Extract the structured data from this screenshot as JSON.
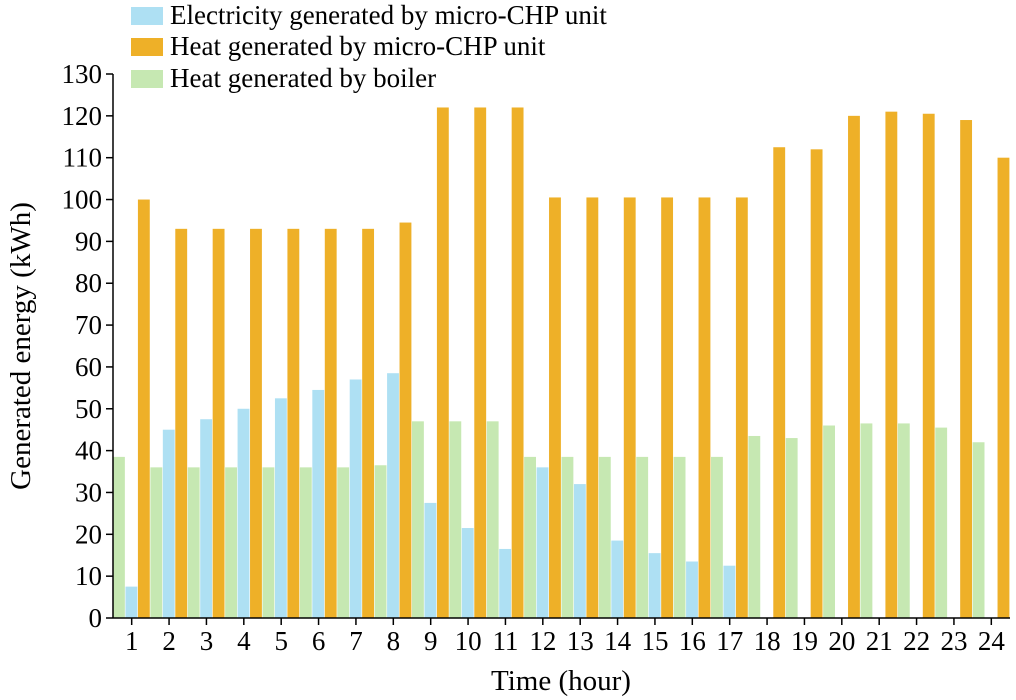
{
  "chart_data": {
    "type": "bar",
    "title": "",
    "xlabel": "Time (hour)",
    "ylabel": "Generated energy (kWh)",
    "ylim": [
      0,
      130
    ],
    "yticks": [
      0,
      10,
      20,
      30,
      40,
      50,
      60,
      70,
      80,
      90,
      100,
      110,
      120,
      130
    ],
    "grid": false,
    "legend_position": "top-left",
    "categories": [
      "1",
      "2",
      "3",
      "4",
      "5",
      "6",
      "7",
      "8",
      "9",
      "10",
      "11",
      "12",
      "13",
      "14",
      "15",
      "16",
      "17",
      "18",
      "19",
      "20",
      "21",
      "22",
      "23",
      "24"
    ],
    "series": [
      {
        "name": "Heat generated by boiler",
        "color": "#c6e8b2",
        "values": [
          38.5,
          36,
          36,
          36,
          36,
          36,
          36,
          36.5,
          47,
          47,
          47,
          38.5,
          38.5,
          38.5,
          38.5,
          38.5,
          38.5,
          43.5,
          43,
          46,
          46.5,
          46.5,
          45.5,
          42
        ]
      },
      {
        "name": "Electricity generated by micro-CHP unit",
        "color": "#aee0f3",
        "values": [
          7.5,
          45,
          47.5,
          50,
          52.5,
          54.5,
          57,
          58.5,
          27.5,
          21.5,
          16.5,
          36,
          32,
          18.5,
          15.5,
          13.5,
          12.5,
          0,
          0,
          0,
          0,
          0,
          0,
          0
        ]
      },
      {
        "name": "Heat generated by micro-CHP unit",
        "color": "#eeb028",
        "values": [
          100,
          93,
          93,
          93,
          93,
          93,
          93,
          94.5,
          122,
          122,
          122,
          100.5,
          100.5,
          100.5,
          100.5,
          100.5,
          100.5,
          112.5,
          112,
          120,
          121,
          120.5,
          119,
          110
        ]
      }
    ],
    "legend": [
      {
        "label": "Electricity generated by micro-CHP unit",
        "color": "#aee0f3"
      },
      {
        "label": "Heat generated by micro-CHP unit",
        "color": "#eeb028"
      },
      {
        "label": "Heat generated by boiler",
        "color": "#c6e8b2"
      }
    ]
  }
}
